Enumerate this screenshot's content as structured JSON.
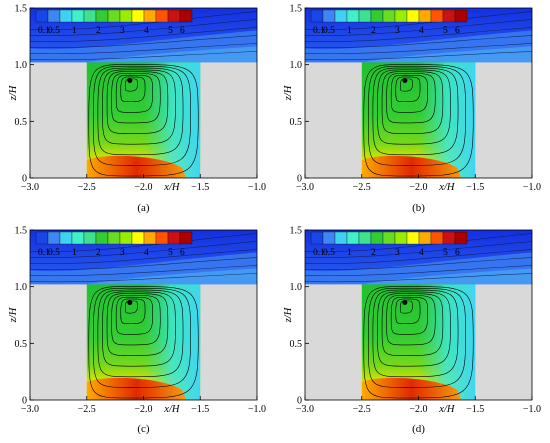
{
  "figure": {
    "colorbar": {
      "tick_labels": [
        "0.1",
        "0.5",
        "1",
        "2",
        "3",
        "4",
        "5",
        "6"
      ],
      "colors": [
        "#1846e8",
        "#3f86f2",
        "#3fd2f0",
        "#3ff0c8",
        "#3fe08e",
        "#33cc33",
        "#66dd22",
        "#99ee00",
        "#ffff00",
        "#ffaa00",
        "#ff5500",
        "#cc1111",
        "#aa0000"
      ]
    },
    "panels": [
      {
        "label": "(a)",
        "chart_data": {
          "type": "contour",
          "xlabel": "x/H",
          "ylabel": "z/H",
          "xlim": [
            -3.0,
            -1.0
          ],
          "ylim": [
            0,
            1.5
          ],
          "x_ticks": [
            "-3.0",
            "-2.5",
            "-2.0",
            "-1.5",
            "-1.0"
          ],
          "y_ticks": [
            "0",
            "0.5",
            "1.0",
            "1.5"
          ],
          "vortex_center": [
            -2.12,
            0.86
          ]
        }
      },
      {
        "label": "(b)",
        "chart_data": {
          "type": "contour",
          "xlabel": "x/H",
          "ylabel": "z/H",
          "xlim": [
            -3.0,
            -1.0
          ],
          "ylim": [
            0,
            1.5
          ],
          "x_ticks": [
            "-3.0",
            "-2.5",
            "-2.0",
            "-1.5",
            "-1.0"
          ],
          "y_ticks": [
            "0",
            "0.5",
            "1.0",
            "1.5"
          ],
          "vortex_center": [
            -2.12,
            0.86
          ]
        }
      },
      {
        "label": "(c)",
        "chart_data": {
          "type": "contour",
          "xlabel": "x/H",
          "ylabel": "z/H",
          "xlim": [
            -3.0,
            -1.0
          ],
          "ylim": [
            0,
            1.5
          ],
          "x_ticks": [
            "-3.0",
            "-2.5",
            "-2.0",
            "-1.5",
            "-1.0"
          ],
          "y_ticks": [
            "0",
            "0.5",
            "1.0",
            "1.5"
          ],
          "vortex_center": [
            -2.12,
            0.86
          ]
        }
      },
      {
        "label": "(d)",
        "chart_data": {
          "type": "contour",
          "xlabel": "x/H",
          "ylabel": "z/H",
          "xlim": [
            -3.0,
            -1.0
          ],
          "ylim": [
            0,
            1.5
          ],
          "x_ticks": [
            "-3.0",
            "-2.5",
            "-2.0",
            "-1.5",
            "-1.0"
          ],
          "y_ticks": [
            "0",
            "0.5",
            "1.0",
            "1.5"
          ],
          "vortex_center": [
            -2.12,
            0.86
          ]
        }
      }
    ]
  }
}
